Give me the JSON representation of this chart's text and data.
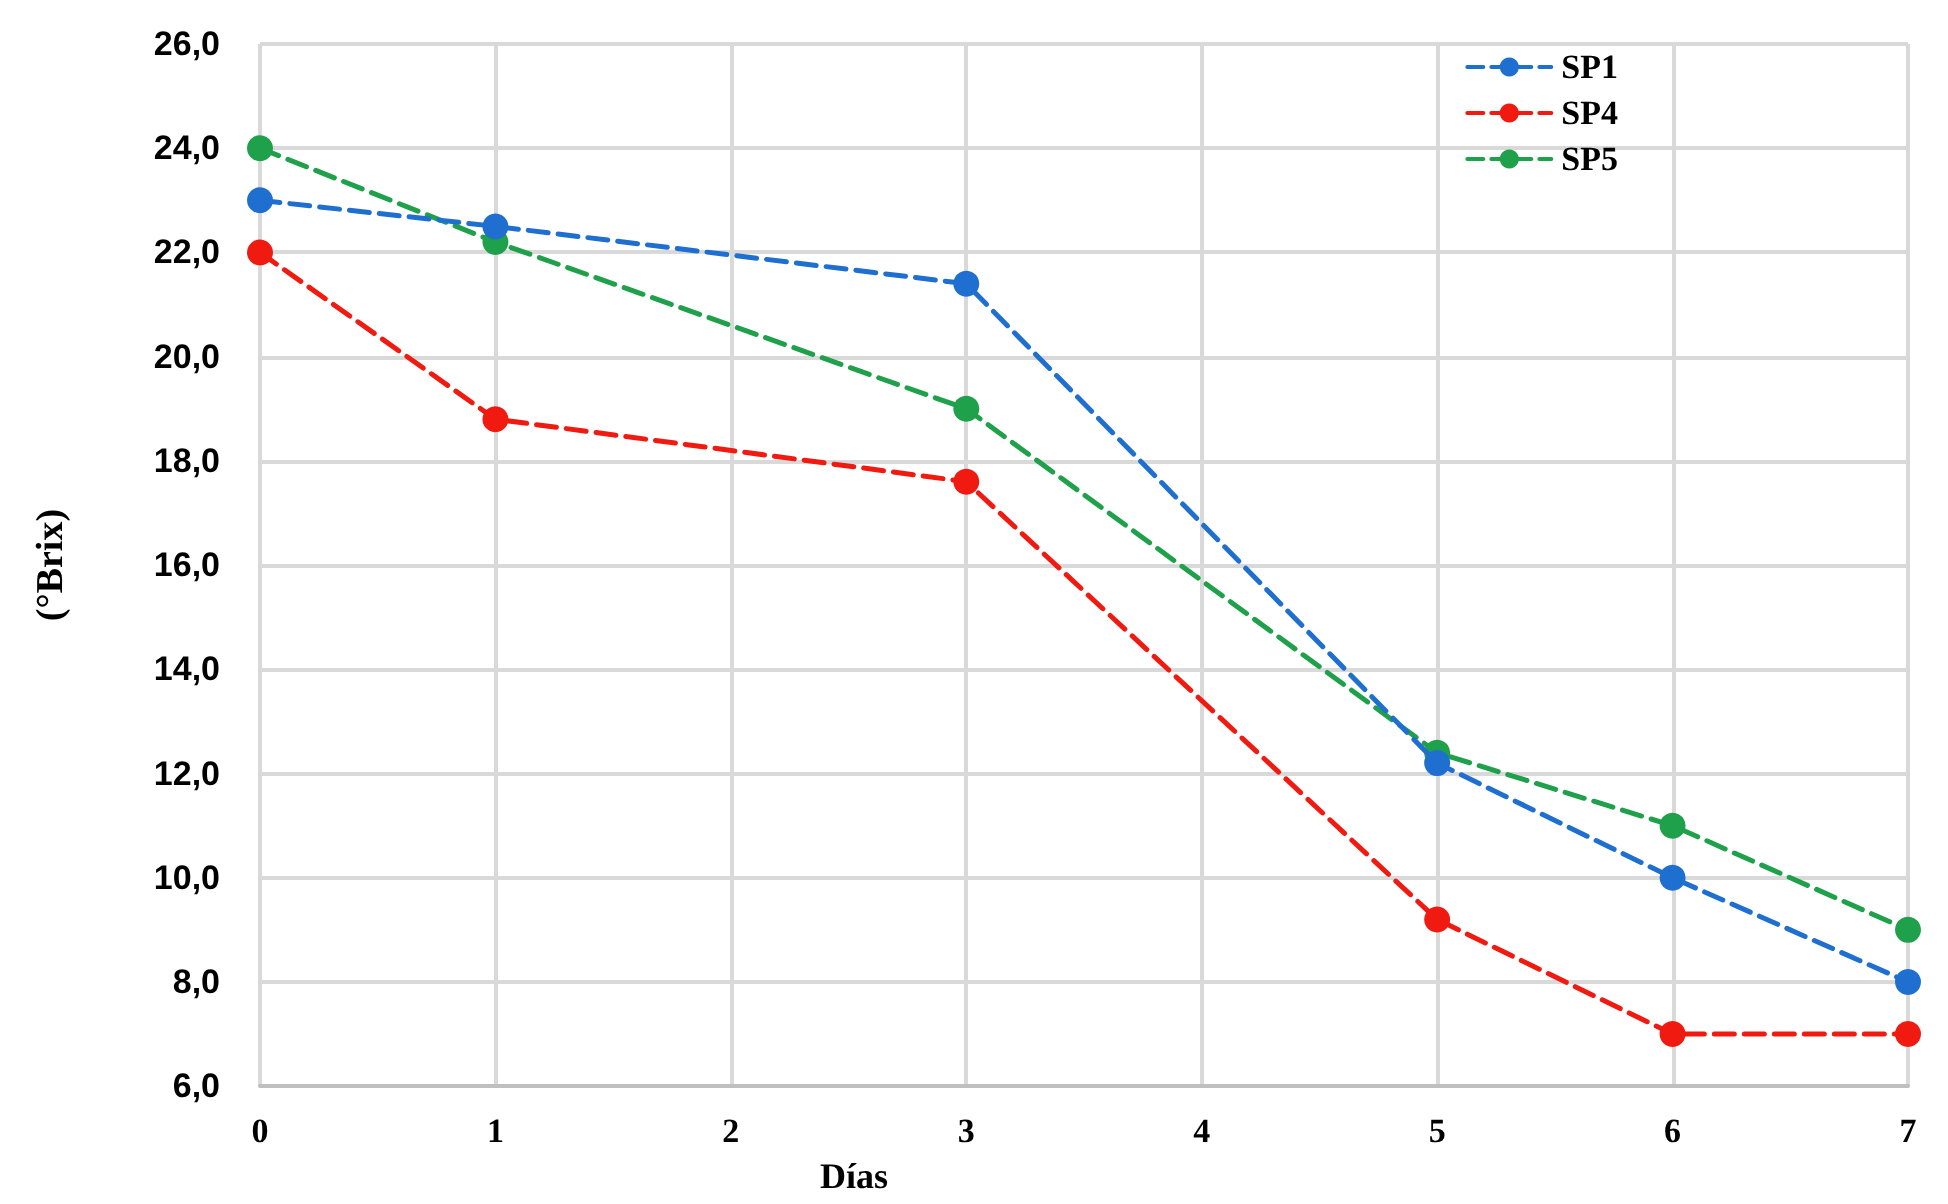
{
  "chart_data": {
    "type": "line",
    "xlabel": "Días",
    "ylabel": "(°Brix)",
    "x": [
      0,
      1,
      3,
      5,
      6,
      7
    ],
    "series": [
      {
        "name": "SP1",
        "color": "#1f6fd1",
        "values": [
          23.0,
          22.5,
          21.4,
          12.2,
          10.0,
          8.0
        ]
      },
      {
        "name": "SP4",
        "color": "#f01a10",
        "values": [
          22.0,
          18.8,
          17.6,
          9.2,
          7.0,
          7.0
        ]
      },
      {
        "name": "SP5",
        "color": "#1fa04a",
        "values": [
          24.0,
          22.2,
          19.0,
          12.4,
          11.0,
          9.0
        ]
      }
    ],
    "xlim": [
      0,
      7
    ],
    "xticks": [
      0,
      1,
      2,
      3,
      4,
      5,
      6,
      7
    ],
    "ylim": [
      6,
      26
    ],
    "yticks": [
      {
        "value": 6,
        "label": "6,0"
      },
      {
        "value": 8,
        "label": "8,0"
      },
      {
        "value": 10,
        "label": "10,0"
      },
      {
        "value": 12,
        "label": "12,0"
      },
      {
        "value": 14,
        "label": "14,0"
      },
      {
        "value": 16,
        "label": "16,0"
      },
      {
        "value": 18,
        "label": "18,0"
      },
      {
        "value": 20,
        "label": "20,0"
      },
      {
        "value": 22,
        "label": "22,0"
      },
      {
        "value": 24,
        "label": "24,0"
      },
      {
        "value": 26,
        "label": "26,0"
      }
    ],
    "grid": true,
    "legend": "top right",
    "marker": "circle",
    "line_style": "dashed"
  }
}
